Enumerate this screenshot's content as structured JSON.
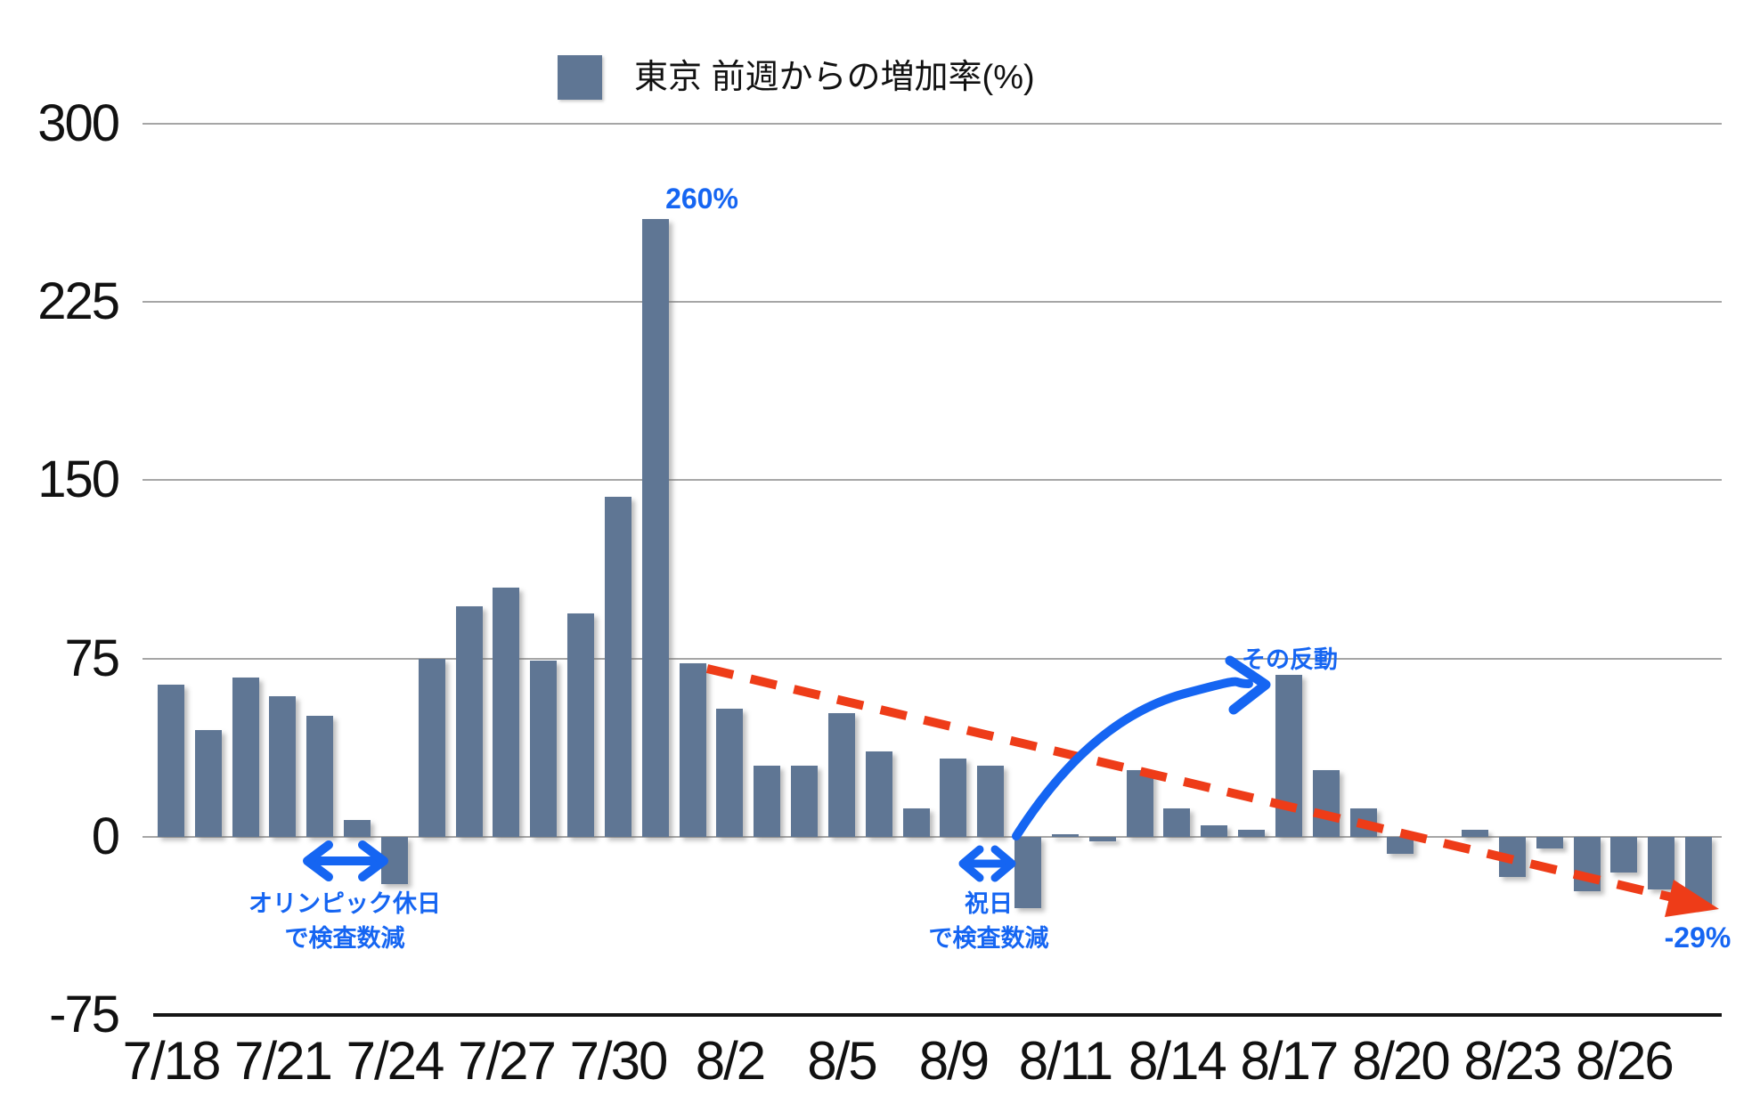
{
  "legend": {
    "label": "東京 前週からの増加率(%)"
  },
  "colors": {
    "bar": "#5f7694",
    "annotation_blue": "#1565f2",
    "trend_red": "#ee3c18",
    "grid": "#a6a6a6",
    "axis": "#151515",
    "text": "#111111"
  },
  "y_axis": {
    "tick_labels": [
      "300",
      "225",
      "150",
      "75",
      "0",
      "-75"
    ],
    "tick_values": [
      300,
      225,
      150,
      75,
      0,
      -75
    ]
  },
  "x_axis": {
    "tick_labels": [
      "7/18",
      "7/21",
      "7/24",
      "7/27",
      "7/30",
      "8/2",
      "8/5",
      "8/9",
      "8/11",
      "8/14",
      "8/17",
      "8/20",
      "8/23",
      "8/26"
    ],
    "label_every_n_bars": 3
  },
  "chart_data": {
    "type": "bar",
    "title": "東京 前週からの増加率(%)",
    "ylabel": "",
    "xlabel": "",
    "ylim": [
      -75,
      300
    ],
    "grid": true,
    "legend_position": "top",
    "x_tick_labels": [
      "7/18",
      "7/21",
      "7/24",
      "7/27",
      "7/30",
      "8/2",
      "8/5",
      "8/9",
      "8/11",
      "8/14",
      "8/17",
      "8/20",
      "8/23",
      "8/26"
    ],
    "x_tick_interval": 3,
    "values": [
      64,
      45,
      67,
      59,
      51,
      7,
      -20,
      75,
      97,
      105,
      74,
      94,
      143,
      260,
      73,
      54,
      30,
      30,
      52,
      36,
      12,
      33,
      30,
      -30,
      1,
      -2,
      28,
      12,
      5,
      3,
      68,
      28,
      12,
      -7,
      0,
      3,
      -17,
      -5,
      -23,
      -15,
      -22,
      -29
    ],
    "annotations_on_data": [
      {
        "text": "260%",
        "at": "peak bar (after 7/30)"
      },
      {
        "text": "-29%",
        "at": "last bar"
      }
    ]
  },
  "annotations": {
    "peak_label": "260%",
    "end_label": "-29%",
    "olympic_line1": "オリンピック休日",
    "olympic_line2": "で検査数減",
    "holiday_line1": "祝日",
    "holiday_line2": "で検査数減",
    "rebound_label": "その反動"
  }
}
